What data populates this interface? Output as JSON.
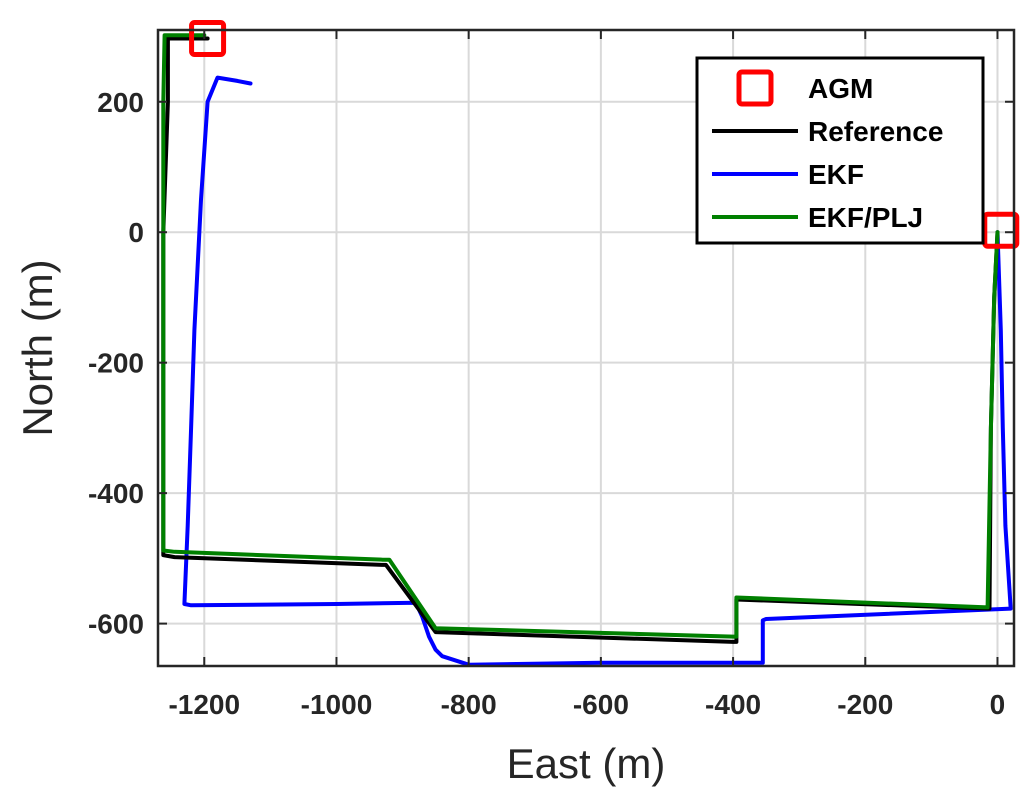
{
  "chart_data": {
    "type": "line",
    "xlabel": "East (m)",
    "ylabel": "North (m)",
    "xlim": [
      -1270,
      25
    ],
    "ylim": [
      -665,
      310
    ],
    "grid": true,
    "xticks": [
      -1200,
      -1000,
      -800,
      -600,
      -400,
      -200,
      0
    ],
    "yticks": [
      200,
      0,
      -200,
      -400,
      -600
    ],
    "legend": {
      "placement": "top-right"
    },
    "colors": {
      "AGM": "#ff0000",
      "Reference": "#000000",
      "EKF": "#0000ff",
      "EKF/PLJ": "#008000",
      "grid": "#d9d9d9",
      "axis": "#262626"
    },
    "series": [
      {
        "name": "AGM",
        "kind": "marker",
        "x": [
          -1195,
          5
        ],
        "y": [
          297,
          3
        ]
      },
      {
        "name": "Reference",
        "kind": "line",
        "x": [
          -1195,
          -1255,
          -1255,
          -1262,
          -1262,
          -1245,
          -930,
          -925,
          -850,
          -400,
          -395,
          -395,
          -15,
          -12,
          -10,
          -5,
          0
        ],
        "y": [
          297,
          297,
          200,
          0,
          -495,
          -498,
          -510,
          -510,
          -613,
          -628,
          -628,
          -563,
          -577,
          -577,
          -300,
          -100,
          0
        ]
      },
      {
        "name": "EKF",
        "kind": "line",
        "x": [
          -1130,
          -1150,
          -1180,
          -1195,
          -1205,
          -1210,
          -1215,
          -1220,
          -1225,
          -1230,
          -1220,
          -1000,
          -880,
          -870,
          -860,
          -850,
          -840,
          -800,
          -600,
          -355,
          -355,
          -350,
          20,
          12,
          8,
          5,
          0
        ],
        "y": [
          228,
          232,
          237,
          200,
          50,
          -50,
          -150,
          -300,
          -450,
          -570,
          -572,
          -570,
          -568,
          -590,
          -620,
          -640,
          -650,
          -663,
          -660,
          -660,
          -595,
          -593,
          -577,
          -450,
          -300,
          -150,
          0
        ]
      },
      {
        "name": "EKF/PLJ",
        "kind": "line",
        "x": [
          -1200,
          -1260,
          -1262,
          -1262,
          -1262,
          -1245,
          -930,
          -920,
          -850,
          -400,
          -395,
          -395,
          -20,
          -15,
          -10,
          -5,
          0
        ],
        "y": [
          302,
          302,
          200,
          0,
          -488,
          -490,
          -502,
          -502,
          -607,
          -620,
          -620,
          -560,
          -575,
          -575,
          -300,
          -100,
          0
        ]
      }
    ]
  }
}
